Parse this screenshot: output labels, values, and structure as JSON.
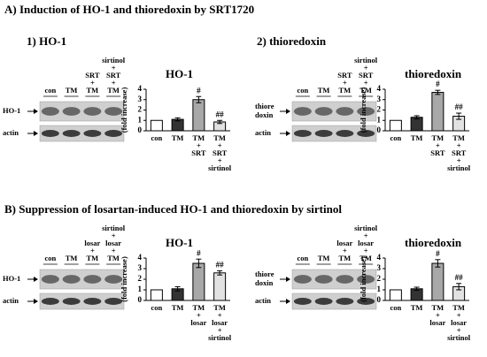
{
  "section_a_title": "A) Induction of HO-1 and thioredoxin by SRT1720",
  "section_b_title": "B) Suppression of losartan-induced HO-1 and thioredoxin by sirtinol",
  "panel_titles": [
    "1) HO-1",
    "2) thioredoxin"
  ],
  "blots": [
    {
      "lanes": [
        [
          "con"
        ],
        [
          "TM"
        ],
        [
          "SRT",
          "+",
          "TM"
        ],
        [
          "sirtinol",
          "+",
          "SRT",
          "+",
          "TM"
        ]
      ],
      "rows": [
        [
          "HO-1"
        ],
        [
          "actin"
        ]
      ]
    },
    {
      "lanes": [
        [
          "con"
        ],
        [
          "TM"
        ],
        [
          "SRT",
          "+",
          "TM"
        ],
        [
          "sirtinol",
          "+",
          "SRT",
          "+",
          "TM"
        ]
      ],
      "rows": [
        [
          "thiore",
          "doxin"
        ],
        [
          "actin"
        ]
      ]
    },
    {
      "lanes": [
        [
          "con"
        ],
        [
          "TM"
        ],
        [
          "losar",
          "+",
          "TM"
        ],
        [
          "sirtinol",
          "+",
          "losar",
          "+",
          "TM"
        ]
      ],
      "rows": [
        [
          "HO-1"
        ],
        [
          "actin"
        ]
      ]
    },
    {
      "lanes": [
        [
          "con"
        ],
        [
          "TM"
        ],
        [
          "losar",
          "+",
          "TM"
        ],
        [
          "sirtinol",
          "+",
          "losar",
          "+",
          "TM"
        ]
      ],
      "rows": [
        [
          "thiore",
          "doxin"
        ],
        [
          "actin"
        ]
      ]
    }
  ],
  "chart_data": [
    {
      "type": "bar",
      "title": "HO-1",
      "y_label": "(fold increase)",
      "categories": [
        [
          "con"
        ],
        [
          "TM"
        ],
        [
          "TM",
          "+",
          "SRT"
        ],
        [
          "TM",
          "+",
          "SRT",
          "+",
          "sirtinol"
        ]
      ],
      "values": [
        1,
        1.1,
        3.0,
        0.85
      ],
      "errors": [
        0,
        0.15,
        0.3,
        0.15
      ],
      "markers": [
        null,
        null,
        "#",
        "##"
      ],
      "colors": [
        "#ffffff",
        "#333333",
        "#a8a8a8",
        "#e2e2e2"
      ],
      "ylim": [
        0,
        4
      ],
      "yticks": [
        0,
        1,
        2,
        3,
        4
      ]
    },
    {
      "type": "bar",
      "title": "thioredoxin",
      "y_label": "(fold increase)",
      "categories": [
        [
          "con"
        ],
        [
          "TM"
        ],
        [
          "TM",
          "+",
          "SRT"
        ],
        [
          "TM",
          "+",
          "SRT",
          "+",
          "sirtinol"
        ]
      ],
      "values": [
        1,
        1.3,
        3.7,
        1.4
      ],
      "errors": [
        0,
        0.15,
        0.2,
        0.3
      ],
      "markers": [
        null,
        null,
        "#",
        "##"
      ],
      "colors": [
        "#ffffff",
        "#333333",
        "#a8a8a8",
        "#e2e2e2"
      ],
      "ylim": [
        0,
        4
      ],
      "yticks": [
        0,
        1,
        2,
        3,
        4
      ]
    },
    {
      "type": "bar",
      "title": "HO-1",
      "y_label": "(fold increase)",
      "categories": [
        [
          "con"
        ],
        [
          "TM"
        ],
        [
          "TM",
          "+",
          "losar"
        ],
        [
          "TM",
          "+",
          "losar",
          "+",
          "sirtinol"
        ]
      ],
      "values": [
        1,
        1.1,
        3.5,
        2.6
      ],
      "errors": [
        0,
        0.2,
        0.4,
        0.2
      ],
      "markers": [
        null,
        null,
        "#",
        "##"
      ],
      "colors": [
        "#ffffff",
        "#333333",
        "#a8a8a8",
        "#e2e2e2"
      ],
      "ylim": [
        0,
        4
      ],
      "yticks": [
        0,
        1,
        2,
        3,
        4
      ]
    },
    {
      "type": "bar",
      "title": "thioredoxin",
      "y_label": "(fold increase)",
      "categories": [
        [
          "con"
        ],
        [
          "TM"
        ],
        [
          "TM",
          "+",
          "losar"
        ],
        [
          "TM",
          "+",
          "losar",
          "+",
          "sirtinol"
        ]
      ],
      "values": [
        1,
        1.1,
        3.5,
        1.3
      ],
      "errors": [
        0,
        0.15,
        0.35,
        0.3
      ],
      "markers": [
        null,
        null,
        "#",
        "##"
      ],
      "colors": [
        "#ffffff",
        "#333333",
        "#a8a8a8",
        "#e2e2e2"
      ],
      "ylim": [
        0,
        4
      ],
      "yticks": [
        0,
        1,
        2,
        3,
        4
      ]
    }
  ]
}
